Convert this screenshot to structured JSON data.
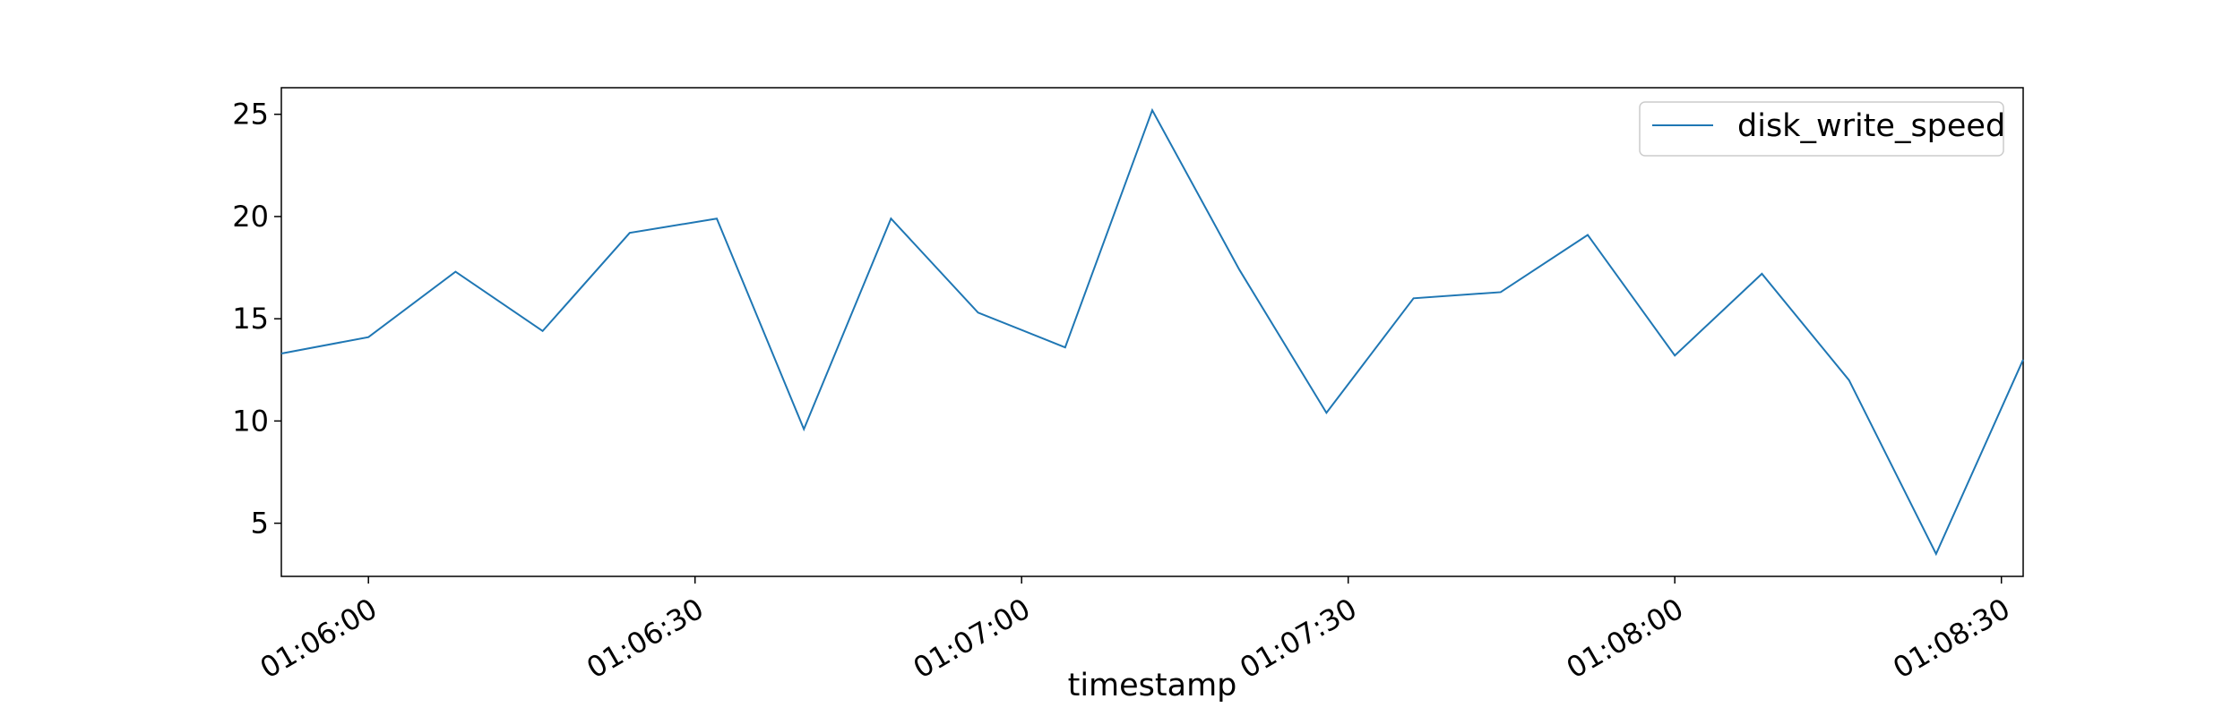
{
  "chart_data": {
    "type": "line",
    "title": "",
    "xlabel": "timestamp",
    "ylabel": "",
    "x": [
      "01:05:52",
      "01:06:00",
      "01:06:08",
      "01:06:16",
      "01:06:24",
      "01:06:32",
      "01:06:40",
      "01:06:48",
      "01:06:56",
      "01:07:04",
      "01:07:12",
      "01:07:20",
      "01:07:28",
      "01:07:36",
      "01:07:44",
      "01:07:52",
      "01:08:00",
      "01:08:08",
      "01:08:16",
      "01:08:24",
      "01:08:32"
    ],
    "series": [
      {
        "name": "disk_write_speed",
        "color": "#1f77b4",
        "values": [
          13.3,
          14.1,
          17.3,
          14.4,
          19.2,
          19.9,
          9.6,
          19.9,
          15.3,
          13.6,
          25.2,
          17.4,
          10.4,
          16.0,
          16.3,
          19.1,
          13.2,
          17.2,
          12.0,
          3.5,
          13.0
        ]
      }
    ],
    "x_ticks": [
      "01:06:00",
      "01:06:30",
      "01:07:00",
      "01:07:30",
      "01:08:00",
      "01:08:30"
    ],
    "y_ticks": [
      5,
      10,
      15,
      20,
      25
    ],
    "xlim": [
      "01:05:52",
      "01:08:32"
    ],
    "ylim": [
      2.4,
      26.3
    ],
    "grid": false,
    "legend_position": "top-right"
  }
}
